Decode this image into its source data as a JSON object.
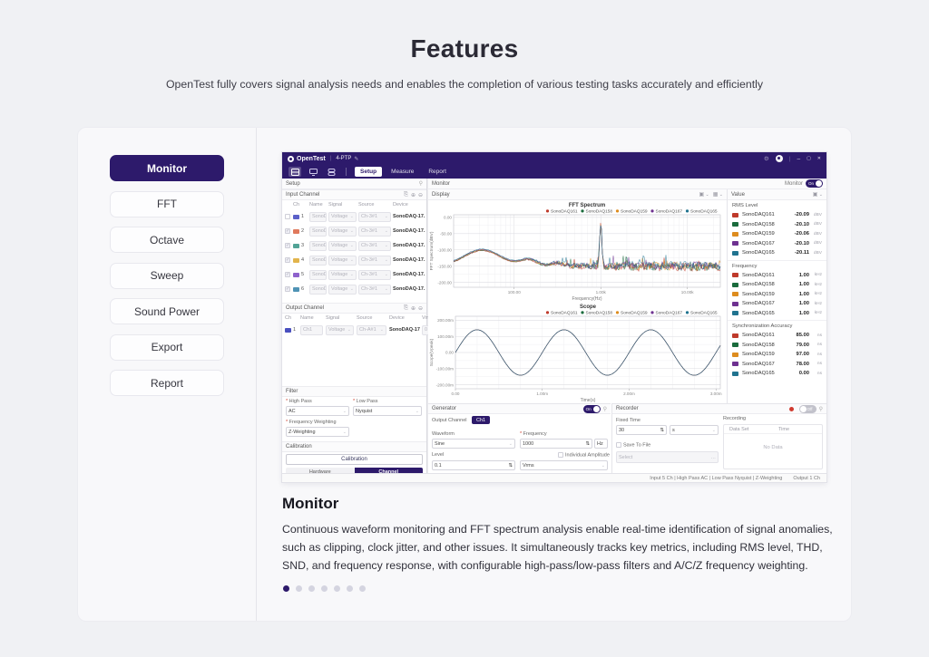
{
  "hero": {
    "title": "Features",
    "subtitle": "OpenTest fully covers signal analysis needs and enables the completion of various testing tasks accurately and efficiently"
  },
  "sidebar": {
    "items": [
      {
        "label": "Monitor",
        "active": true
      },
      {
        "label": "FFT",
        "active": false
      },
      {
        "label": "Octave",
        "active": false
      },
      {
        "label": "Sweep",
        "active": false
      },
      {
        "label": "Sound Power",
        "active": false
      },
      {
        "label": "Export",
        "active": false
      },
      {
        "label": "Report",
        "active": false
      }
    ]
  },
  "feature": {
    "heading": "Monitor",
    "description": "Continuous waveform monitoring and FFT spectrum analysis enable real-time identification of signal anomalies, such as clipping, clock jitter, and other issues. It simultaneously tracks key metrics, including RMS level, THD, SND, and frequency response, with configurable high-pass/low-pass filters and A/C/Z frequency weighting.",
    "dot_count": 7,
    "active_dot": 0
  },
  "colors": {
    "accent": "#2d1a6b",
    "record_red": "#d03a2f"
  },
  "icons": {
    "minimize": "–",
    "maximize": "▢",
    "close": "✕",
    "pencil": "✎",
    "gear": "⚙",
    "pin": "⚲",
    "chevron": "⌄",
    "stepper": "⇅",
    "copy": "⎘",
    "add": "⊕",
    "remove": "⊖",
    "window": "▣",
    "grid": "▦",
    "ellipsis": "…",
    "check": "✓"
  },
  "app": {
    "titlebar": {
      "brand": "OpenTest",
      "project": "4-PTP"
    },
    "toolbar": {
      "tabs": [
        "Setup",
        "Measure",
        "Report"
      ],
      "active_tab": "Setup"
    },
    "channels": [
      {
        "name": "SonoDAQ161",
        "color": "#bf3a2b"
      },
      {
        "name": "SonoDAQ158",
        "color": "#1a6b3c"
      },
      {
        "name": "SonoDAQ159",
        "color": "#dd8c1e"
      },
      {
        "name": "SonoDAQ167",
        "color": "#6e3190"
      },
      {
        "name": "SonoDAQ165",
        "color": "#20738f"
      }
    ],
    "setup_panel": {
      "title": "Setup",
      "input_channel": {
        "title": "Input Channel",
        "columns": [
          "Ch",
          "Name",
          "Signal",
          "Source",
          "Device"
        ],
        "rows": [
          {
            "ch": "1",
            "checked": false,
            "color": "#5c61c9",
            "name": "SonoD...",
            "signal": "Voltage",
            "source": "Ch-3#1",
            "device": "SonoDAQ-17..."
          },
          {
            "ch": "2",
            "checked": true,
            "color": "#e0795c",
            "name": "SonoD...",
            "signal": "Voltage",
            "source": "Ch-3#1",
            "device": "SonoDAQ-17..."
          },
          {
            "ch": "3",
            "checked": true,
            "color": "#52a396",
            "name": "SonoD...",
            "signal": "Voltage",
            "source": "Ch-3#1",
            "device": "SonoDAQ-17..."
          },
          {
            "ch": "4",
            "checked": true,
            "color": "#e2b44c",
            "name": "SonoD...",
            "signal": "Voltage",
            "source": "Ch-3#1",
            "device": "SonoDAQ-17..."
          },
          {
            "ch": "5",
            "checked": true,
            "color": "#8e62cc",
            "name": "SonoD...",
            "signal": "Voltage",
            "source": "Ch-3#1",
            "device": "SonoDAQ-17..."
          },
          {
            "ch": "6",
            "checked": true,
            "color": "#4f93b5",
            "name": "SonoD...",
            "signal": "Voltage",
            "source": "Ch-3#1",
            "device": "SonoDAQ-17..."
          }
        ]
      },
      "output_channel": {
        "title": "Output Channel",
        "columns": [
          "Ch",
          "Name",
          "Signal",
          "Source",
          "Device",
          "Vrm"
        ],
        "row": {
          "ch": "1",
          "color": "#4a50bf",
          "name": "Ch1",
          "signal": "Voltage",
          "source": "Ch-A#1",
          "device": "SonoDAQ-17...",
          "vrm": "0"
        }
      },
      "filter": {
        "title": "Filter",
        "high_pass_label": "High Pass",
        "high_pass": "AC",
        "low_pass_label": "Low Pass",
        "low_pass": "Nyquist",
        "weighting_label": "Frequency Weighting",
        "weighting": "Z-Weighting"
      },
      "calibration": {
        "title": "Calibration",
        "button": "Calibration",
        "tabs": [
          "Hardware",
          "Channel"
        ],
        "active_tab": "Channel"
      }
    },
    "monitor_panel": {
      "title": "Monitor",
      "toggle_label": "Monitor",
      "toggle_state": "On",
      "display": {
        "title": "Display"
      },
      "value_panel": {
        "title": "Value",
        "groups": [
          {
            "title": "RMS Level",
            "unit": "dBV",
            "values": [
              "-20.09",
              "-20.10",
              "-20.06",
              "-20.10",
              "-20.11"
            ]
          },
          {
            "title": "Frequency",
            "unit": "kHz",
            "values": [
              "1.00",
              "1.00",
              "1.00",
              "1.00",
              "1.00"
            ]
          },
          {
            "title": "Synchronization Accuracy",
            "unit": "ns",
            "values": [
              "85.00",
              "79.00",
              "97.00",
              "78.00",
              "0.00"
            ]
          }
        ]
      },
      "generator": {
        "title": "Generator",
        "toggle_state": "On",
        "output_channel_label": "Output Channel",
        "output_channel": "Ch1",
        "waveform_label": "Waveform",
        "waveform": "Sine",
        "frequency_label": "Frequency",
        "frequency": "1000",
        "frequency_unit": "Hz",
        "level_label": "Level",
        "level": "0.1",
        "level_unit": "Vrms",
        "individual_amplitude_label": "Individual Amplitude"
      },
      "recorder": {
        "title": "Recorder",
        "toggle_state": "Off",
        "fixed_time_label": "Fixed Time",
        "fixed_time": "30",
        "time_unit": "s",
        "save_to_file_label": "Save To File",
        "file_placeholder": "Select",
        "recording_label": "Recording",
        "table_columns": [
          "Data Set",
          "Time"
        ],
        "empty_text": "No Data"
      },
      "status_bar": {
        "left": "Input  5 Ch | High Pass  AC | Low Pass  Nyquist |  Z-Weighting",
        "right": "Output  1 Ch"
      }
    }
  },
  "chart_data": [
    {
      "type": "line",
      "title": "FFT Spectrum",
      "xlabel": "Frequency(Hz)",
      "ylabel": "FFT Spectrum(dBV)",
      "x_scale": "log",
      "xlim": [
        20,
        24000
      ],
      "ylim": [
        -215,
        8
      ],
      "x_ticks": [
        {
          "value": 100,
          "label": "100.00"
        },
        {
          "value": 1000,
          "label": "1.00k"
        },
        {
          "value": 10000,
          "label": "10.00k"
        }
      ],
      "y_ticks": [
        {
          "value": 0,
          "label": "0.00"
        },
        {
          "value": -50,
          "label": "-50.00"
        },
        {
          "value": -100,
          "label": "-100.00"
        },
        {
          "value": -150,
          "label": "-150.00"
        },
        {
          "value": -200,
          "label": "-200.00"
        }
      ],
      "series": [
        "SonoDAQ161",
        "SonoDAQ158",
        "SonoDAQ159",
        "SonoDAQ167",
        "SonoDAQ165"
      ],
      "legend_position": "top-right",
      "grid": true,
      "features": {
        "noise_floor_dbv": -150,
        "low_freq_bump": {
          "hz": 42,
          "dbv": -100
        },
        "secondary_bumps_hz": [
          150,
          320
        ],
        "fundamental_tone": {
          "hz": 1000,
          "dbv": -20
        },
        "description": "Five overlapping channel spectra: smooth low-frequency lobes, broadband noise floor near -150 dBV, sharp 1 kHz tone peaking near -20 dBV"
      }
    },
    {
      "type": "line",
      "title": "Scope",
      "xlabel": "Time(s)",
      "ylabel": "Scope(Vpeak)",
      "x_scale": "linear",
      "xlim": [
        0,
        0.00305
      ],
      "ylim": [
        -0.225,
        0.225
      ],
      "x_ticks": [
        {
          "value": 0,
          "label": "0.00"
        },
        {
          "value": 0.001,
          "label": "1.00m"
        },
        {
          "value": 0.002,
          "label": "2.00m"
        },
        {
          "value": 0.003,
          "label": "3.00m"
        }
      ],
      "y_ticks": [
        {
          "value": 0.2,
          "label": "200.00m"
        },
        {
          "value": 0.1,
          "label": "100.00m"
        },
        {
          "value": 0,
          "label": "0.00"
        },
        {
          "value": -0.1,
          "label": "-100.00m"
        },
        {
          "value": -0.2,
          "label": "-200.00m"
        }
      ],
      "series": [
        "SonoDAQ161",
        "SonoDAQ158",
        "SonoDAQ159",
        "SonoDAQ167",
        "SonoDAQ165"
      ],
      "legend_position": "top-right",
      "grid": true,
      "waveform": {
        "shape": "sine",
        "amplitude_vpeak": 0.141,
        "frequency_hz": 1000,
        "cycles_shown": 3
      }
    }
  ]
}
